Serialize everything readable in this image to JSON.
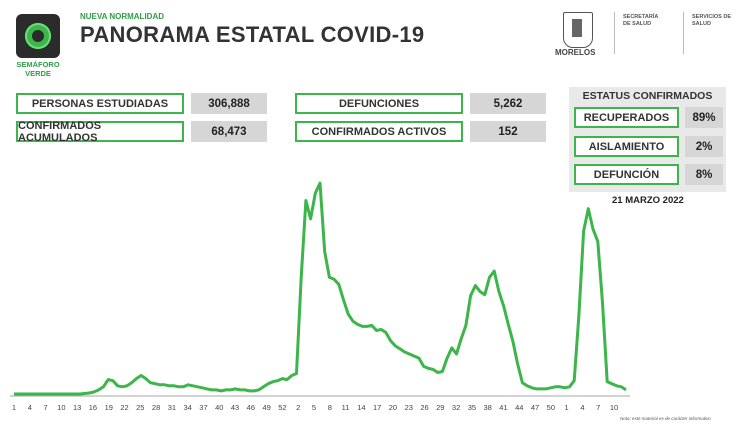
{
  "header": {
    "subtitle": "NUEVA NORMALIDAD",
    "title": "PANORAMA ESTATAL COVID-19",
    "semaforo_label": "SEMÁFORO VERDE",
    "logo_text": "MORELOS",
    "gov1": "SECRETARÍA DE SALUD",
    "gov2": "SERVICIOS DE SALUD"
  },
  "stats": {
    "estudiadas_label": "PERSONAS ESTUDIADAS",
    "estudiadas_value": "306,888",
    "confirmados_label": "CONFIRMADOS ACUMULADOS",
    "confirmados_value": "68,473",
    "defunciones_label": "DEFUNCIONES",
    "defunciones_value": "5,262",
    "activos_label": "CONFIRMADOS ACTIVOS",
    "activos_value": "152"
  },
  "status": {
    "title": "ESTATUS CONFIRMADOS",
    "recuperados_label": "RECUPERADOS",
    "recuperados_value": "89%",
    "aislamiento_label": "AISLAMIENTO",
    "aislamiento_value": "2%",
    "defuncion_label": "DEFUNCIÓN",
    "defuncion_value": "8%"
  },
  "date": "21 MARZO 2022",
  "note": "Nota: este material es de carácter informativo",
  "colors": {
    "accent": "#3cb54a",
    "value_bg": "#d6d6d6",
    "text": "#333333"
  },
  "chart_data": {
    "type": "line",
    "title": "",
    "xlabel": "",
    "ylabel": "",
    "x_tick_labels": [
      "1",
      "4",
      "7",
      "10",
      "13",
      "16",
      "19",
      "22",
      "25",
      "28",
      "31",
      "34",
      "37",
      "40",
      "43",
      "46",
      "49",
      "52",
      "2",
      "5",
      "8",
      "11",
      "14",
      "17",
      "20",
      "23",
      "26",
      "29",
      "32",
      "35",
      "38",
      "41",
      "44",
      "47",
      "50",
      "1",
      "4",
      "7",
      "10"
    ],
    "series": [
      {
        "color": "#3cb54a",
        "values": [
          1,
          1,
          1,
          1,
          1,
          1,
          1,
          1,
          1,
          1,
          1,
          1,
          1,
          1,
          1,
          1.5,
          2,
          3,
          5,
          8,
          15,
          14,
          9,
          8,
          9,
          12,
          16,
          19,
          16,
          12,
          11,
          10,
          10,
          9,
          9,
          8,
          8,
          10,
          9,
          8,
          7,
          6,
          5,
          5,
          4,
          5,
          5,
          6,
          5,
          5,
          4,
          4,
          5,
          8,
          11,
          13,
          14,
          16,
          15,
          19,
          21,
          115,
          190,
          172,
          197,
          207,
          140,
          115,
          113,
          108,
          93,
          79,
          72,
          69,
          67,
          67,
          68,
          63,
          64,
          61,
          53,
          48,
          45,
          42,
          40,
          38,
          36,
          28,
          26,
          25,
          22,
          23,
          36,
          46,
          40,
          55,
          68,
          97,
          107,
          101,
          98,
          115,
          121,
          101,
          87,
          69,
          52,
          30,
          12,
          9,
          7,
          6,
          6,
          6,
          7,
          8,
          8,
          7,
          8,
          14,
          78,
          160,
          182,
          162,
          150,
          90,
          13,
          11,
          9,
          8,
          5
        ]
      }
    ]
  }
}
